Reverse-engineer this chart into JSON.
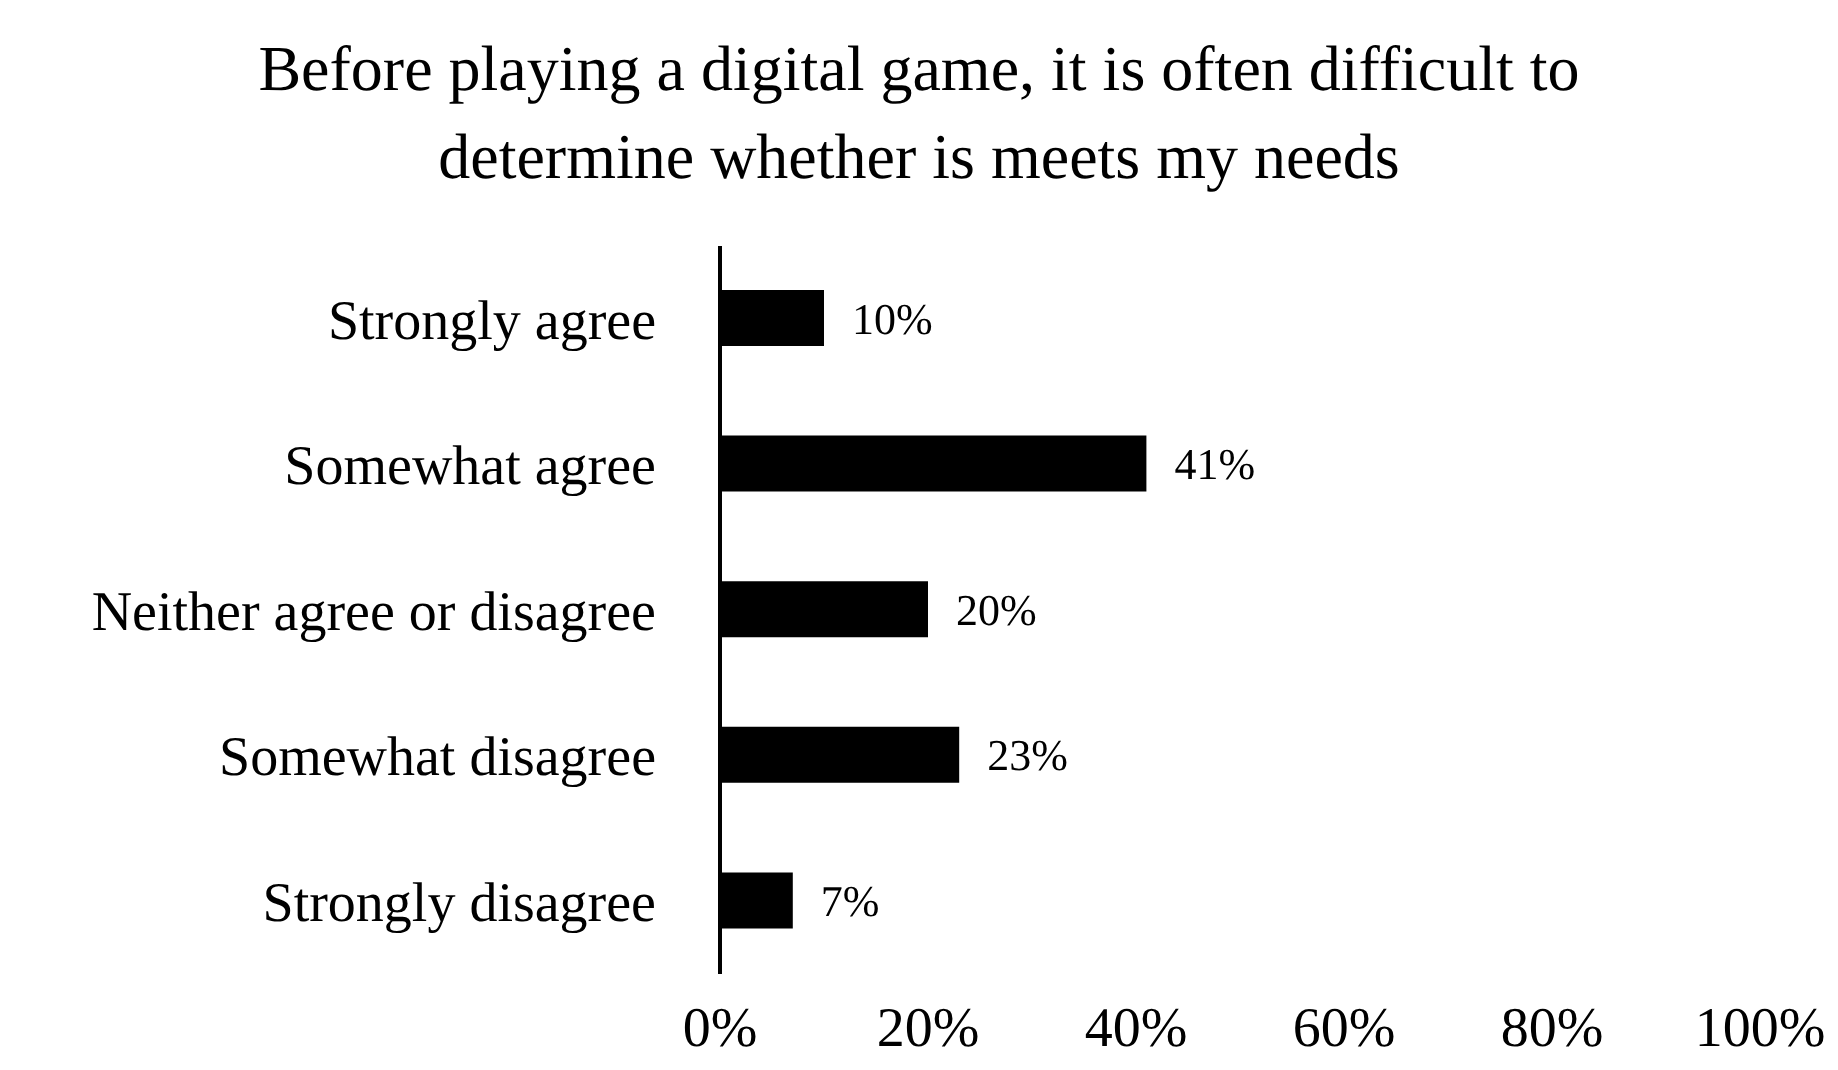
{
  "chart_data": {
    "type": "bar",
    "orientation": "horizontal",
    "title": "Before playing a digital game, it is often difficult to determine whether is meets my needs",
    "categories": [
      "Strongly agree",
      "Somewhat agree",
      "Neither agree or disagree",
      "Somewhat disagree",
      "Strongly disagree"
    ],
    "values": [
      10,
      41,
      20,
      23,
      7
    ],
    "color": "#000000",
    "value_labels": [
      "10%",
      "41%",
      "20%",
      "23%",
      "7%"
    ],
    "xlim": [
      0,
      100
    ],
    "xticks": [
      {
        "value": 0,
        "label": "0%"
      },
      {
        "value": 20,
        "label": "20%"
      },
      {
        "value": 40,
        "label": "40%"
      },
      {
        "value": 60,
        "label": "60%"
      },
      {
        "value": 80,
        "label": "80%"
      },
      {
        "value": 100,
        "label": "100%"
      }
    ],
    "grid": false,
    "legend": false
  }
}
